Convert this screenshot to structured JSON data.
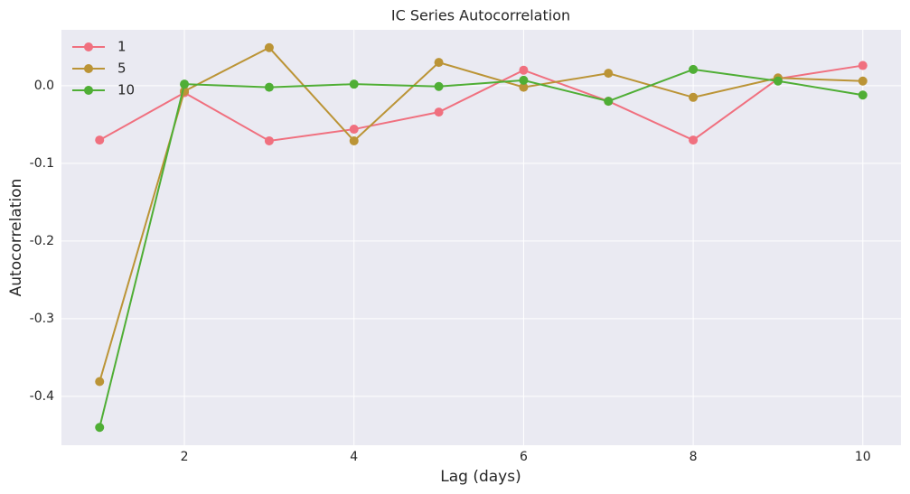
{
  "chart_data": {
    "type": "line",
    "title": "IC Series Autocorrelation",
    "x_label": "Lag (days)",
    "y_label": "Autocorrelation",
    "x": [
      1,
      2,
      3,
      4,
      5,
      6,
      7,
      8,
      9,
      10
    ],
    "series": [
      {
        "name": "1",
        "color": "#f0707f",
        "values": [
          -0.07,
          -0.009,
          -0.071,
          -0.056,
          -0.034,
          0.02,
          -0.02,
          -0.07,
          0.009,
          0.026
        ]
      },
      {
        "name": "5",
        "color": "#bb9436",
        "values": [
          -0.381,
          -0.007,
          0.049,
          -0.071,
          0.03,
          -0.002,
          0.016,
          -0.015,
          0.01,
          0.006
        ]
      },
      {
        "name": "10",
        "color": "#4fae35",
        "values": [
          -0.44,
          0.002,
          -0.002,
          0.002,
          -0.001,
          0.007,
          -0.02,
          0.021,
          0.006,
          -0.012
        ]
      }
    ],
    "xlim": [
      0.55,
      10.45
    ],
    "xticks": [
      2,
      4,
      6,
      8,
      10
    ],
    "ylim": [
      -0.463,
      0.072
    ],
    "yticks": [
      -0.4,
      -0.3,
      -0.2,
      -0.1,
      {
        "value": 0,
        "label": "0.0"
      }
    ],
    "grid": true,
    "legend": "upper-left"
  }
}
